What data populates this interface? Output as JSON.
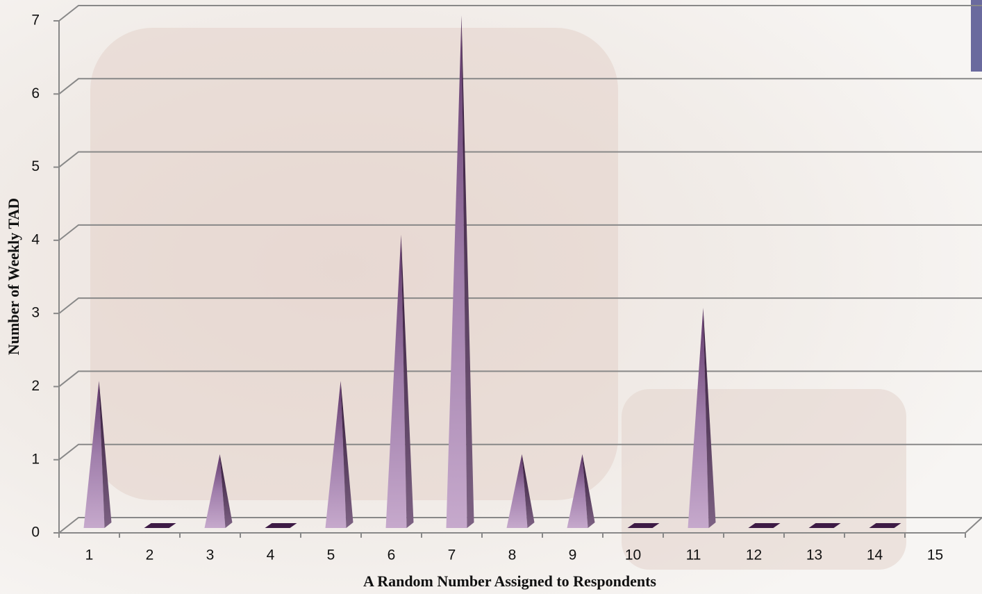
{
  "chart_data": {
    "type": "bar",
    "shape": "pyramid",
    "x_label": "A Random Number Assigned to Respondents",
    "y_label": "Number of Weekly TAD",
    "categories": [
      "1",
      "2",
      "3",
      "4",
      "5",
      "6",
      "7",
      "8",
      "9",
      "10",
      "11",
      "12",
      "13",
      "14",
      "15"
    ],
    "values": [
      2,
      0,
      1,
      0,
      2,
      4,
      7,
      1,
      1,
      0,
      3,
      0,
      0,
      0,
      null
    ],
    "color": "#a98ab2",
    "ylim": [
      0,
      7
    ],
    "yticks": [
      0,
      1,
      2,
      3,
      4,
      5,
      6,
      7
    ],
    "grid": true
  }
}
